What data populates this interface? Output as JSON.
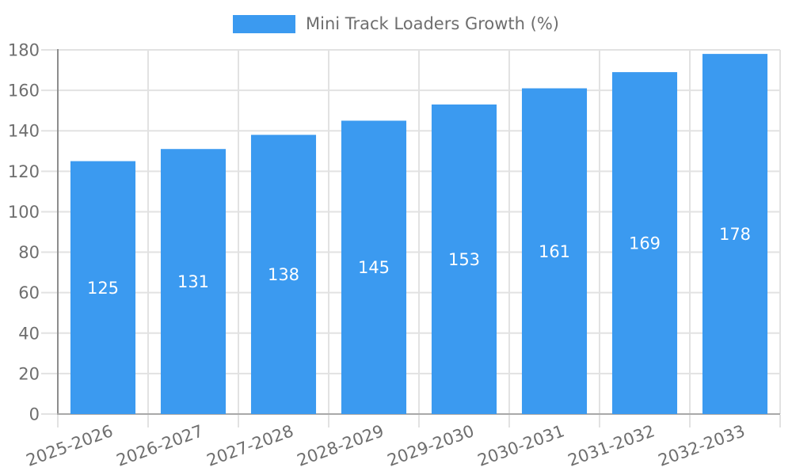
{
  "chart_data": {
    "type": "bar",
    "title": "Mini Track Loaders Growth (%)",
    "legend": {
      "label": "Mini Track Loaders Growth (%)",
      "position": "top-center"
    },
    "categories": [
      "2025-2026",
      "2026-2027",
      "2027-2028",
      "2028-2029",
      "2029-2030",
      "2030-2031",
      "2031-2032",
      "2032-2033"
    ],
    "series": [
      {
        "name": "Mini Track Loaders Growth (%)",
        "values": [
          125,
          131,
          138,
          145,
          153,
          161,
          169,
          178
        ]
      }
    ],
    "value_labels": [
      "125",
      "131",
      "138",
      "145",
      "153",
      "161",
      "169",
      "178"
    ],
    "xlabel": "",
    "ylabel": "",
    "ylim": [
      0,
      180
    ],
    "yticks": [
      0,
      20,
      40,
      60,
      80,
      100,
      120,
      140,
      160,
      180
    ],
    "grid": "on",
    "x_label_rotation_deg": -20,
    "colors": {
      "bar": "#3b9af0",
      "value_label": "#ffffff",
      "axis_text": "#6e6e6e",
      "grid_line": "#e2e2e2",
      "y_axis_line": "#8d8d8d",
      "x_axis_line": "#a9a9a9",
      "background": "#ffffff"
    }
  }
}
